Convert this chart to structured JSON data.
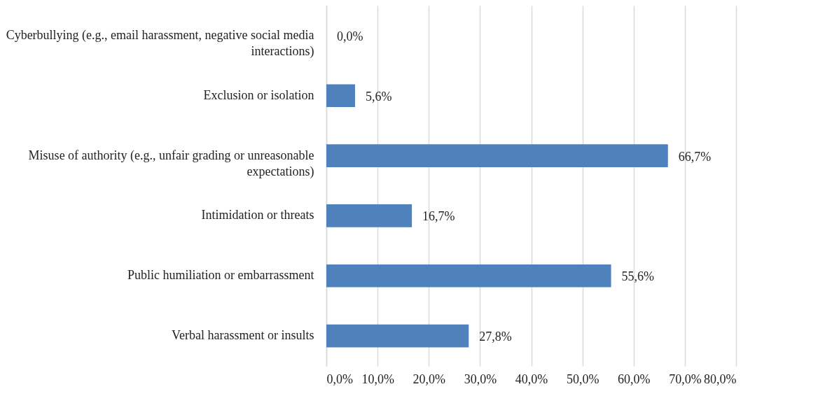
{
  "chart_data": {
    "type": "bar",
    "orientation": "horizontal",
    "categories": [
      "Cyberbullying (e.g., email harassment, negative social media interactions)",
      "Exclusion or isolation",
      "Misuse of authority (e.g., unfair grading or unreasonable expectations)",
      "Intimidation or threats",
      "Public humiliation or embarrassment",
      "Verbal harassment or insults"
    ],
    "values": [
      0,
      5.6,
      66.7,
      16.7,
      55.6,
      27.8
    ],
    "value_labels": [
      "0,0%",
      "5,6%",
      "66,7%",
      "16,7%",
      "55,6%",
      "27,8%"
    ],
    "color": "#4f81bd",
    "xlim": [
      0,
      80
    ],
    "xticks": [
      {
        "value": 0,
        "label": "0,0%"
      },
      {
        "value": 10,
        "label": "10,0%"
      },
      {
        "value": 20,
        "label": "20,0%"
      },
      {
        "value": 30,
        "label": "30,0%"
      },
      {
        "value": 40,
        "label": "40,0%"
      },
      {
        "value": 50,
        "label": "50,0%"
      },
      {
        "value": 60,
        "label": "60,0%"
      },
      {
        "value": 70,
        "label": "70,0%"
      },
      {
        "value": 80,
        "label": "80,0%"
      }
    ],
    "grid": "x"
  }
}
